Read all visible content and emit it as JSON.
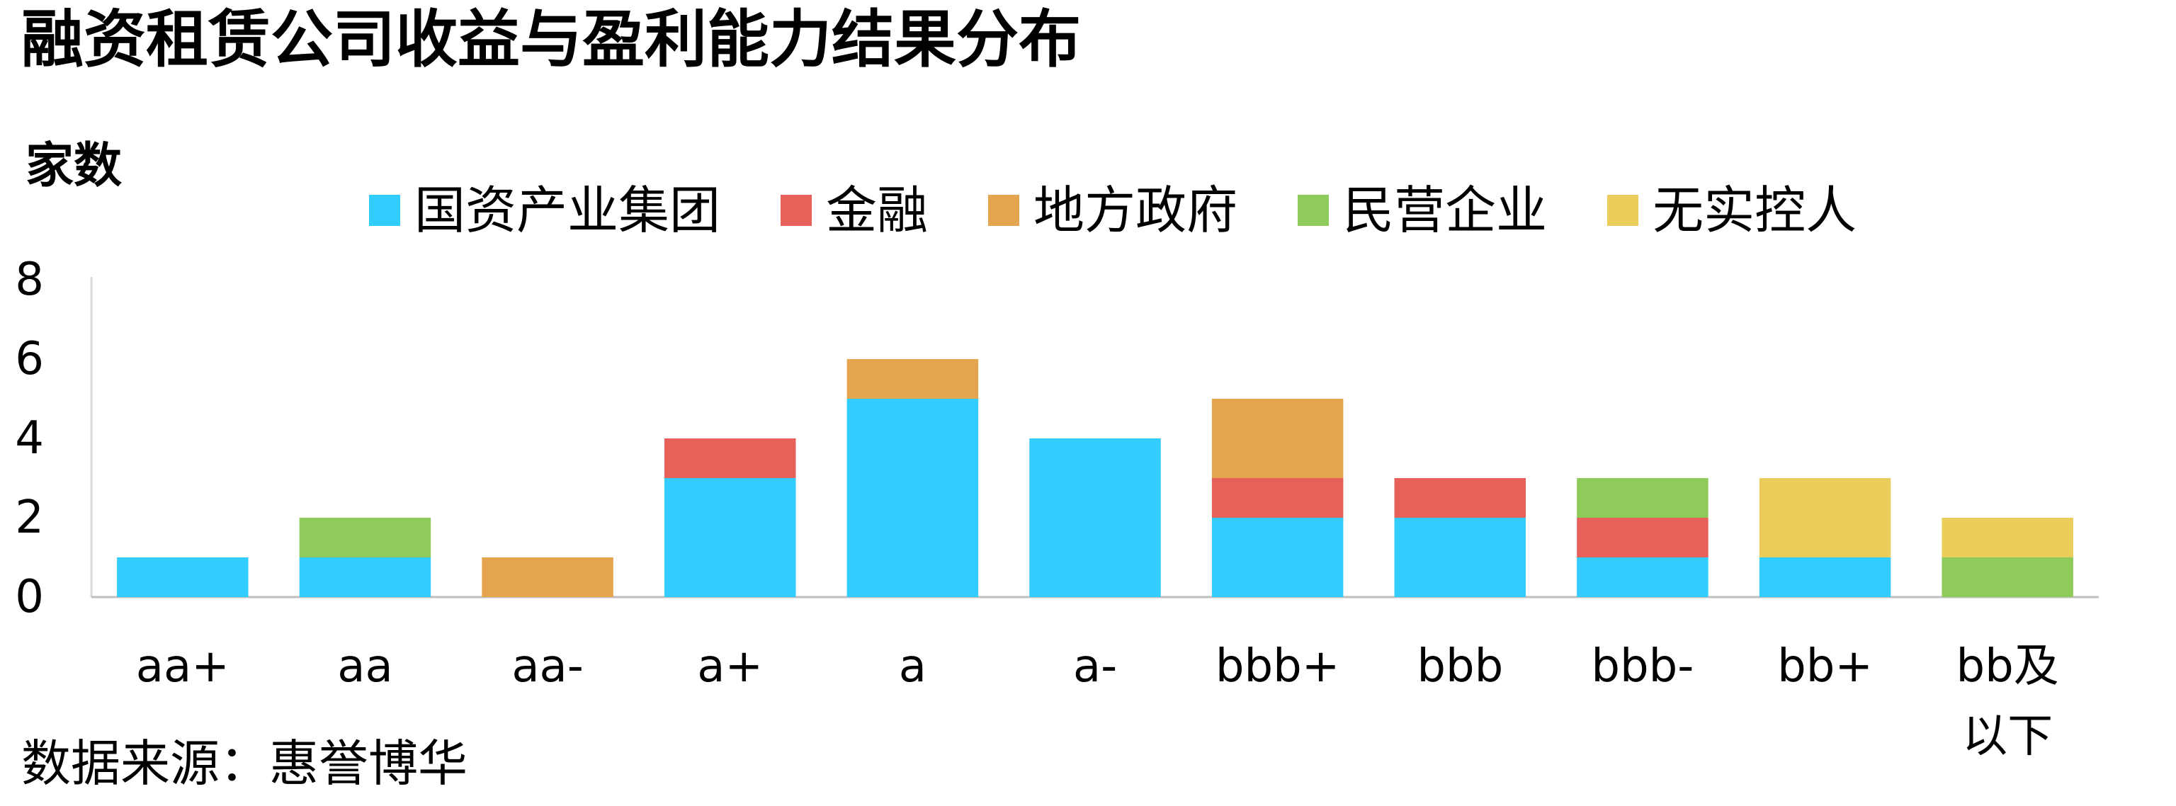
{
  "title": "融资租赁公司收益与盈利能力结果分布",
  "source": "数据来源：惠誉博华",
  "chart_data": {
    "type": "bar",
    "stacked": true,
    "title": "融资租赁公司收益与盈利能力结果分布",
    "xlabel": "",
    "ylabel": "家数",
    "ylim": [
      0,
      8
    ],
    "yticks": [
      0,
      2,
      4,
      6,
      8
    ],
    "grid": false,
    "legend_position": "top",
    "categories": [
      "aa+",
      "aa",
      "aa-",
      "a+",
      "a",
      "a-",
      "bbb+",
      "bbb",
      "bbb-",
      "bb+",
      "bb及以下"
    ],
    "series": [
      {
        "name": "国资产业集团",
        "color": "#33CCFF",
        "values": [
          1,
          1,
          0,
          3,
          5,
          4,
          2,
          2,
          1,
          1,
          0
        ]
      },
      {
        "name": "金融",
        "color": "#E8605A",
        "values": [
          0,
          0,
          0,
          1,
          0,
          0,
          1,
          1,
          1,
          0,
          0
        ]
      },
      {
        "name": "地方政府",
        "color": "#E5A54E",
        "values": [
          0,
          0,
          1,
          0,
          1,
          0,
          2,
          0,
          0,
          0,
          0
        ]
      },
      {
        "name": "民营企业",
        "color": "#8FCB5B",
        "values": [
          0,
          1,
          0,
          0,
          0,
          0,
          0,
          0,
          1,
          0,
          1
        ]
      },
      {
        "name": "无实控人",
        "color": "#EACD5B",
        "values": [
          0,
          0,
          0,
          0,
          0,
          0,
          0,
          0,
          0,
          2,
          1
        ]
      }
    ]
  }
}
